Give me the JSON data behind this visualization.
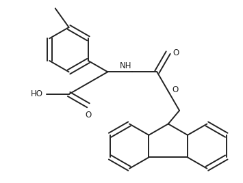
{
  "bg_color": "#ffffff",
  "line_color": "#222222",
  "line_width": 1.4,
  "figsize": [
    3.55,
    2.68
  ],
  "dpi": 100,
  "xlim": [
    0,
    355
  ],
  "ylim": [
    0,
    268
  ]
}
